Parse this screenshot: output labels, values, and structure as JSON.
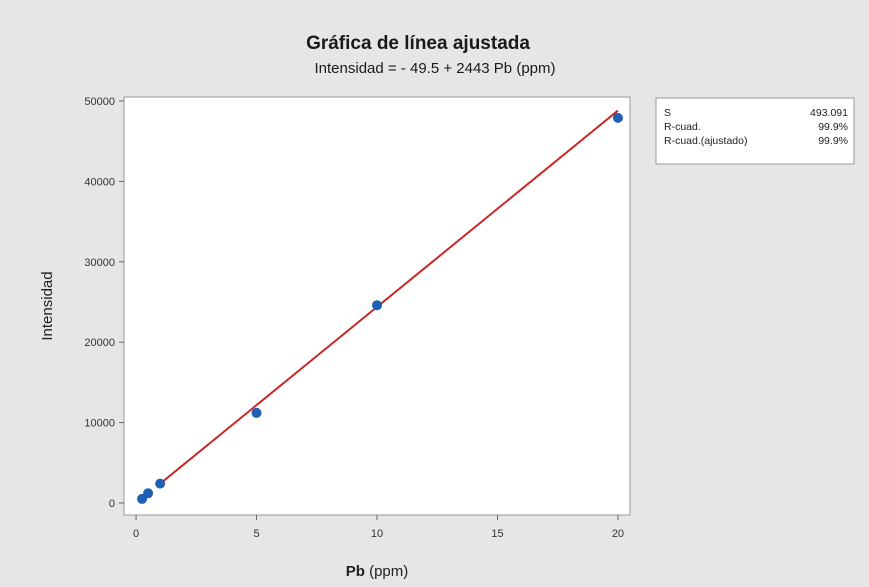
{
  "chart_data": {
    "type": "scatter",
    "title": "Gráfica de línea ajustada",
    "subtitle": "Intensidad = - 49.5 + 2443 Pb (ppm)",
    "xlabel": "Pb (ppm)",
    "ylabel": "Intensidad",
    "xlim": [
      -0.5,
      20.5
    ],
    "ylim": [
      -1500,
      50500
    ],
    "xticks": [
      0,
      5,
      10,
      15,
      20
    ],
    "xtick_labels": [
      "0",
      "5",
      "10",
      "15",
      "20"
    ],
    "yticks": [
      0,
      10000,
      20000,
      30000,
      40000,
      50000
    ],
    "ytick_labels": [
      "0",
      "10000",
      "20000",
      "30000",
      "40000",
      "50000"
    ],
    "grid": false,
    "points": {
      "x": [
        0.25,
        0.5,
        1,
        5,
        10,
        20
      ],
      "y": [
        500,
        1200,
        2400,
        11200,
        24600,
        47900
      ],
      "color": "#1f5fb4"
    },
    "fit_line": {
      "intercept": -49.5,
      "slope": 2443,
      "x_range": [
        1,
        20
      ],
      "color": "#c62828"
    },
    "stats": {
      "rows": [
        {
          "label": "S",
          "value": "493.091"
        },
        {
          "label": "R-cuad.",
          "value": "99.9%"
        },
        {
          "label": "R-cuad.(ajustado)",
          "value": "99.9%"
        }
      ]
    }
  }
}
